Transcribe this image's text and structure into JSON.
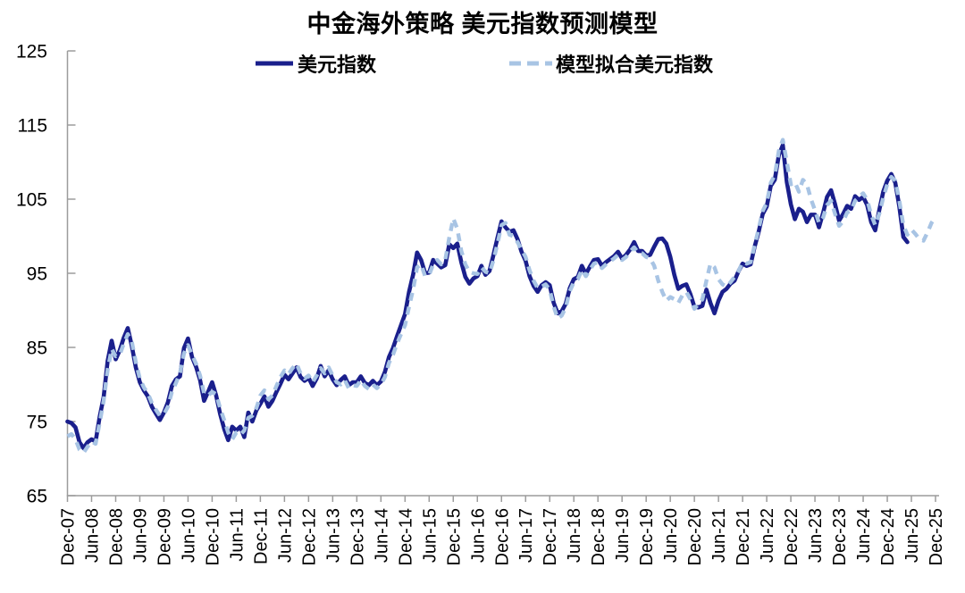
{
  "title": "中金海外策略 美元指数预测模型",
  "legend": [
    {
      "label": "美元指数",
      "color": "#1a1f8c",
      "style": "solid"
    },
    {
      "label": "模型拟合美元指数",
      "color": "#a8c4e4",
      "style": "dashed"
    }
  ],
  "chart_data": {
    "type": "line",
    "title": "中金海外策略 美元指数预测模型",
    "xlabel": "",
    "ylabel": "",
    "ylim": [
      65,
      125
    ],
    "y_ticks": [
      125,
      115,
      105,
      95,
      85,
      75,
      65
    ],
    "grid": false,
    "legend_position": "top",
    "axis_color": "#9c9c9c",
    "text_color": "#000000",
    "frequency": "monthly",
    "start": "Dec-07",
    "months_total": 216,
    "x_tick_labels": [
      "Dec-07",
      "Jun-08",
      "Dec-08",
      "Jun-09",
      "Dec-09",
      "Jun-10",
      "Dec-10",
      "Jun-11",
      "Dec-11",
      "Jun-12",
      "Dec-12",
      "Jun-13",
      "Dec-13",
      "Jun-14",
      "Dec-14",
      "Jun-15",
      "Dec-15",
      "Jun-16",
      "Dec-16",
      "Jun-17",
      "Dec-17",
      "Jun-18",
      "Dec-18",
      "Jun-19",
      "Dec-19",
      "Jun-20",
      "Dec-20",
      "Jun-21",
      "Dec-21",
      "Jun-22",
      "Dec-22",
      "Jun-23",
      "Dec-23",
      "Jun-24",
      "Dec-24",
      "Jun-25",
      "Dec-25"
    ],
    "series": [
      {
        "name": "美元指数",
        "data_name": "usd-index-line",
        "color": "#1a1f8c",
        "dash": "solid",
        "start": "Dec-07",
        "end": "May-25",
        "values": [
          75.0,
          74.8,
          74.2,
          72.2,
          71.4,
          72.2,
          72.6,
          72.3,
          75.6,
          78.3,
          83.2,
          85.9,
          83.4,
          84.6,
          86.3,
          87.6,
          85.2,
          82.3,
          80.3,
          79.2,
          78.4,
          77.0,
          76.1,
          75.2,
          76.2,
          77.6,
          79.8,
          80.7,
          81.1,
          84.9,
          86.2,
          83.7,
          82.4,
          80.6,
          77.8,
          79.0,
          80.3,
          78.5,
          76.0,
          74.0,
          72.5,
          74.3,
          73.8,
          74.3,
          72.9,
          76.2,
          75.0,
          76.5,
          77.4,
          78.4,
          77.0,
          77.8,
          79.0,
          80.1,
          81.3,
          80.7,
          81.5,
          82.3,
          81.0,
          80.5,
          80.9,
          79.8,
          80.8,
          82.5,
          81.1,
          81.9,
          80.7,
          79.9,
          80.6,
          81.1,
          79.9,
          80.3,
          80.3,
          81.1,
          80.2,
          79.9,
          80.5,
          79.9,
          80.4,
          81.7,
          83.7,
          84.9,
          86.5,
          88.0,
          89.5,
          92.5,
          94.8,
          97.8,
          96.8,
          95.0,
          95.1,
          96.8,
          96.3,
          95.8,
          96.1,
          98.9,
          98.4,
          99.0,
          96.5,
          94.5,
          93.6,
          94.3,
          94.6,
          96.0,
          94.8,
          95.3,
          97.5,
          99.8,
          102.0,
          101.2,
          100.6,
          100.8,
          99.6,
          97.9,
          96.7,
          94.6,
          93.3,
          92.5,
          93.4,
          93.8,
          93.4,
          91.0,
          89.6,
          89.9,
          90.9,
          93.0,
          94.2,
          94.5,
          96.0,
          94.9,
          95.9,
          96.8,
          96.9,
          96.0,
          96.5,
          96.9,
          97.3,
          97.9,
          97.0,
          97.5,
          98.2,
          99.2,
          98.0,
          98.0,
          97.4,
          97.5,
          98.6,
          99.6,
          99.7,
          99.0,
          97.2,
          94.8,
          92.9,
          93.3,
          93.5,
          92.2,
          90.5,
          90.4,
          90.6,
          92.8,
          91.0,
          89.6,
          91.3,
          92.5,
          92.9,
          93.6,
          94.0,
          95.3,
          96.3,
          96.0,
          96.2,
          98.6,
          100.6,
          103.0,
          104.0,
          106.8,
          107.6,
          110.9,
          112.3,
          107.3,
          104.3,
          102.3,
          103.7,
          103.3,
          101.9,
          102.9,
          102.9,
          101.2,
          103.1,
          105.3,
          106.2,
          104.3,
          102.1,
          103.0,
          104.1,
          103.7,
          105.4,
          104.9,
          105.3,
          104.2,
          101.9,
          100.8,
          103.5,
          106.0,
          107.5,
          108.4,
          107.2,
          104.0,
          99.9,
          99.2
        ]
      },
      {
        "name": "模型拟合美元指数",
        "data_name": "model-fit-line",
        "color": "#a8c4e4",
        "dash": "dashed",
        "start": "Dec-07",
        "end": "Dec-25",
        "values": [
          73.0,
          73.3,
          72.6,
          71.2,
          70.8,
          71.6,
          72.3,
          72.0,
          74.8,
          77.8,
          82.0,
          84.8,
          83.8,
          84.0,
          85.5,
          86.8,
          85.8,
          83.0,
          80.8,
          79.6,
          78.8,
          77.5,
          76.6,
          75.8,
          76.0,
          77.0,
          79.0,
          80.2,
          81.5,
          84.2,
          85.3,
          84.0,
          82.8,
          81.2,
          78.8,
          78.5,
          79.0,
          78.7,
          76.8,
          75.2,
          73.5,
          72.6,
          73.5,
          73.2,
          73.8,
          75.5,
          75.8,
          76.8,
          78.5,
          79.2,
          78.0,
          78.5,
          79.8,
          81.0,
          81.9,
          81.4,
          82.2,
          82.8,
          81.5,
          80.8,
          81.2,
          80.3,
          81.2,
          82.2,
          81.5,
          82.3,
          81.2,
          80.3,
          80.0,
          80.6,
          79.5,
          79.9,
          79.8,
          80.6,
          79.8,
          79.4,
          80.0,
          79.5,
          80.0,
          81.0,
          82.9,
          84.0,
          85.5,
          86.8,
          88.0,
          90.5,
          92.8,
          95.8,
          96.2,
          94.6,
          94.8,
          96.2,
          96.8,
          96.2,
          96.8,
          99.8,
          102.4,
          101.0,
          98.0,
          96.2,
          95.2,
          95.0,
          94.9,
          95.8,
          95.2,
          95.0,
          96.8,
          99.0,
          101.5,
          101.8,
          100.2,
          100.0,
          99.2,
          98.2,
          97.2,
          95.4,
          94.0,
          93.0,
          93.2,
          93.5,
          92.8,
          90.5,
          88.9,
          89.3,
          90.4,
          92.6,
          93.8,
          94.2,
          95.5,
          94.6,
          95.5,
          96.3,
          96.5,
          95.7,
          96.2,
          96.6,
          97.0,
          97.5,
          96.8,
          97.2,
          97.9,
          98.5,
          97.8,
          97.7,
          97.2,
          97.0,
          96.0,
          94.0,
          92.5,
          91.3,
          91.8,
          91.5,
          91.0,
          92.0,
          92.5,
          91.5,
          90.2,
          90.8,
          91.5,
          94.0,
          96.3,
          95.8,
          94.2,
          93.5,
          93.2,
          93.8,
          94.5,
          95.3,
          96.5,
          96.3,
          96.5,
          98.8,
          101.0,
          103.4,
          104.5,
          107.2,
          108.2,
          111.5,
          113.0,
          110.0,
          107.0,
          107.3,
          106.0,
          107.6,
          107.0,
          105.0,
          103.5,
          101.8,
          102.5,
          104.2,
          104.8,
          103.0,
          101.4,
          102.0,
          103.2,
          103.5,
          104.8,
          105.3,
          105.8,
          104.9,
          102.9,
          101.5,
          103.0,
          105.2,
          107.0,
          108.0,
          107.5,
          104.8,
          101.5,
          100.2,
          100.9,
          100.3,
          99.6,
          99.4,
          100.5,
          101.8,
          102.6
        ]
      }
    ]
  }
}
